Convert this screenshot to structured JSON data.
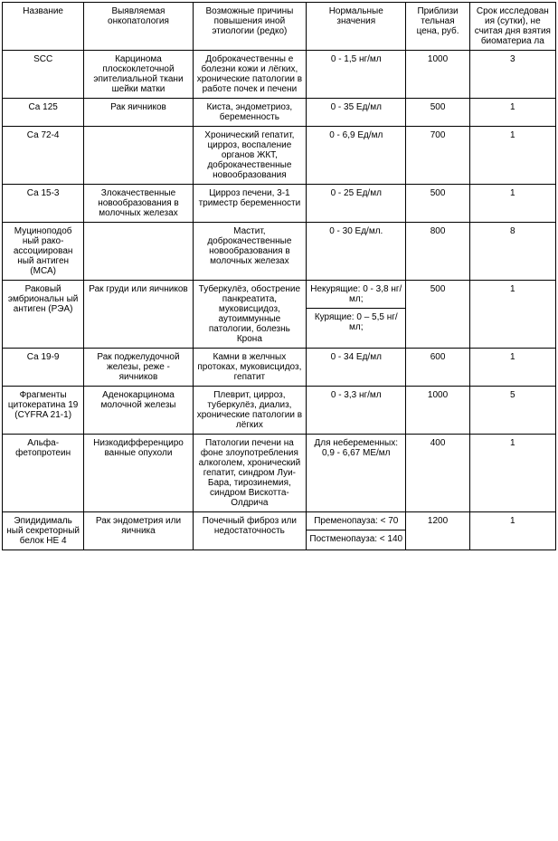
{
  "table": {
    "headers": {
      "name": "Название",
      "pathology": "Выявляемая онкопатология",
      "causes": "Возможные причины повышения иной этиологии (редко)",
      "normal": "Нормальные значения",
      "price": "Приблизи тельная цена, руб.",
      "duration": "Срок исследован ия (сутки), не считая дня взятия биоматериа ла"
    },
    "rows": [
      {
        "name": "SCC",
        "pathology": "Карцинома плоскоклеточной эпителиальной ткани шейки матки",
        "causes": "Доброкачественны е болезни кожи и лёгких, хронические патологии в работе почек и печени",
        "normal": "0 - 1,5 нг/мл",
        "price": "1000",
        "duration": "3"
      },
      {
        "name": "Са 125",
        "pathology": "Рак яичников",
        "causes": "Киста, эндометриоз, беременность",
        "normal": "0 - 35 Ед/мл",
        "price": "500",
        "duration": "1"
      },
      {
        "name": "Са 72-4",
        "pathology": "",
        "causes": "Хронический гепатит, цирроз, воспаление органов ЖКТ, доброкачественные новообразования",
        "normal": "0 - 6,9 Ед/мл",
        "price": "700",
        "duration": "1"
      },
      {
        "name": "Са 15-3",
        "pathology": "Злокачественные новообразования в молочных железах",
        "causes": "Цирроз печени, 3-1 триместр беременности",
        "normal": "0 - 25 Ед/мл",
        "price": "500",
        "duration": "1"
      },
      {
        "name": "Муциноподоб ный рако-ассоциирован ный антиген (МСА)",
        "pathology": "",
        "causes": "Мастит, доброкачественные новообразования в молочных железах",
        "normal": "0 - 30 Ед/мл.",
        "price": "800",
        "duration": "8"
      },
      {
        "name": "Раковый эмбриональн ый антиген (РЭА)",
        "pathology": "Рак груди или яичников",
        "causes": "Туберкулёз, обострение панкреатита, муковисцидоз, аутоиммунные патологии, болезнь Крона",
        "normal_multi": [
          "Некурящие: 0 - 3,8 нг/мл;",
          "Курящие: 0 – 5,5 нг/мл;"
        ],
        "price": "500",
        "duration": "1"
      },
      {
        "name": "Са 19-9",
        "pathology": "Рак поджелудочной железы, реже - яичников",
        "causes": "Камни в желчных протоках, муковисцидоз, гепатит",
        "normal": "0 - 34 Ед/мл",
        "price": "600",
        "duration": "1"
      },
      {
        "name": "Фрагменты цитокератина 19 (CYFRA 21-1)",
        "pathology": "Аденокарцинома молочной железы",
        "causes": "Плеврит, цирроз, туберкулёз, диализ, хронические патологии в лёгких",
        "normal": "0 - 3,3 нг/мл",
        "price": "1000",
        "duration": "5"
      },
      {
        "name": "Альфа-фетопротеин",
        "pathology": "Низкодифференциро ванные опухоли",
        "causes": "Патологии печени на фоне злоупотребления алкоголем, хронический гепатит, синдром Луи-Бара, тирозинемия, синдром Вискотта-Олдрича",
        "normal": "Для небеременных: 0,9 - 6,67 МЕ/мл",
        "price": "400",
        "duration": "1"
      },
      {
        "name": "Эпидидималь ный секреторный белок HE 4",
        "pathology": "Рак эндометрия или яичника",
        "causes": "Почечный фиброз или недостаточность",
        "normal_multi": [
          "Пременопауза: < 70",
          "Постменопауза: < 140"
        ],
        "price": "1200",
        "duration": "1"
      }
    ]
  }
}
